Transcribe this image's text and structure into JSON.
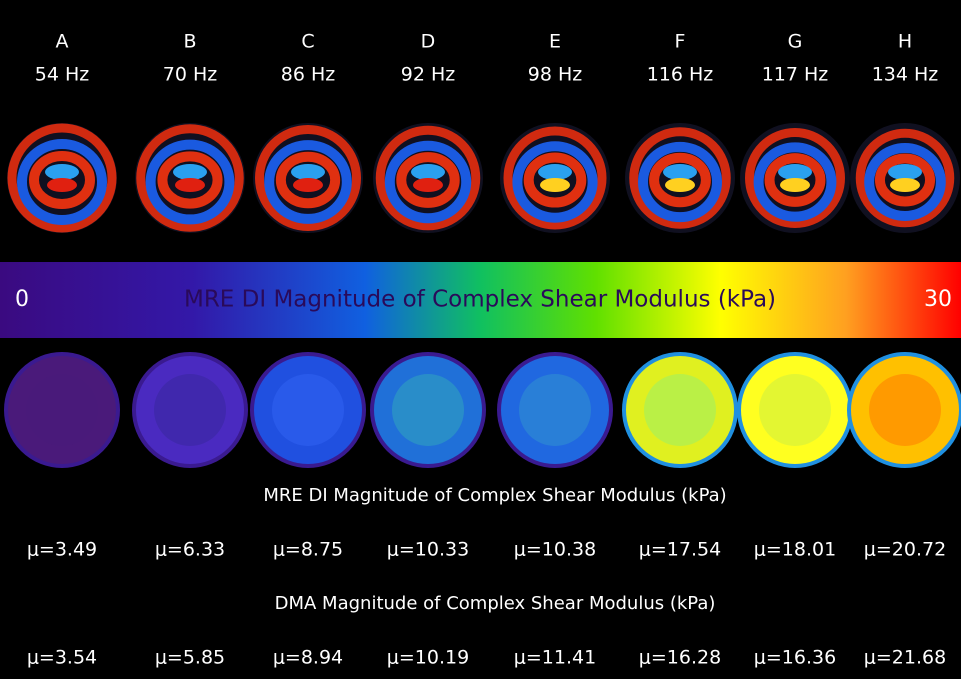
{
  "colorbar": {
    "min": "0",
    "max": "30",
    "title": "MRE DI Magnitude of Complex Shear Modulus (kPa)"
  },
  "mre_row_title": "MRE DI Magnitude of Complex Shear Modulus (kPa)",
  "dma_row_title": "DMA Magnitude of Complex Shear Modulus (kPa)",
  "panels": [
    {
      "letter": "A",
      "frequency": "54 Hz",
      "mre": "μ=3.49",
      "dma": "μ=3.54"
    },
    {
      "letter": "B",
      "frequency": "70 Hz",
      "mre": "μ=6.33",
      "dma": "μ=5.85"
    },
    {
      "letter": "C",
      "frequency": "86 Hz",
      "mre": "μ=8.75",
      "dma": "μ=8.94"
    },
    {
      "letter": "D",
      "frequency": "92 Hz",
      "mre": "μ=10.33",
      "dma": "μ=10.19"
    },
    {
      "letter": "E",
      "frequency": "98 Hz",
      "mre": "μ=10.38",
      "dma": "μ=11.41"
    },
    {
      "letter": "F",
      "frequency": "116 Hz",
      "mre": "μ=17.54",
      "dma": "μ=16.28"
    },
    {
      "letter": "G",
      "frequency": "117 Hz",
      "mre": "μ=18.01",
      "dma": "μ=16.36"
    },
    {
      "letter": "H",
      "frequency": "134 Hz",
      "mre": "μ=20.72",
      "dma": "μ=21.68"
    }
  ]
}
